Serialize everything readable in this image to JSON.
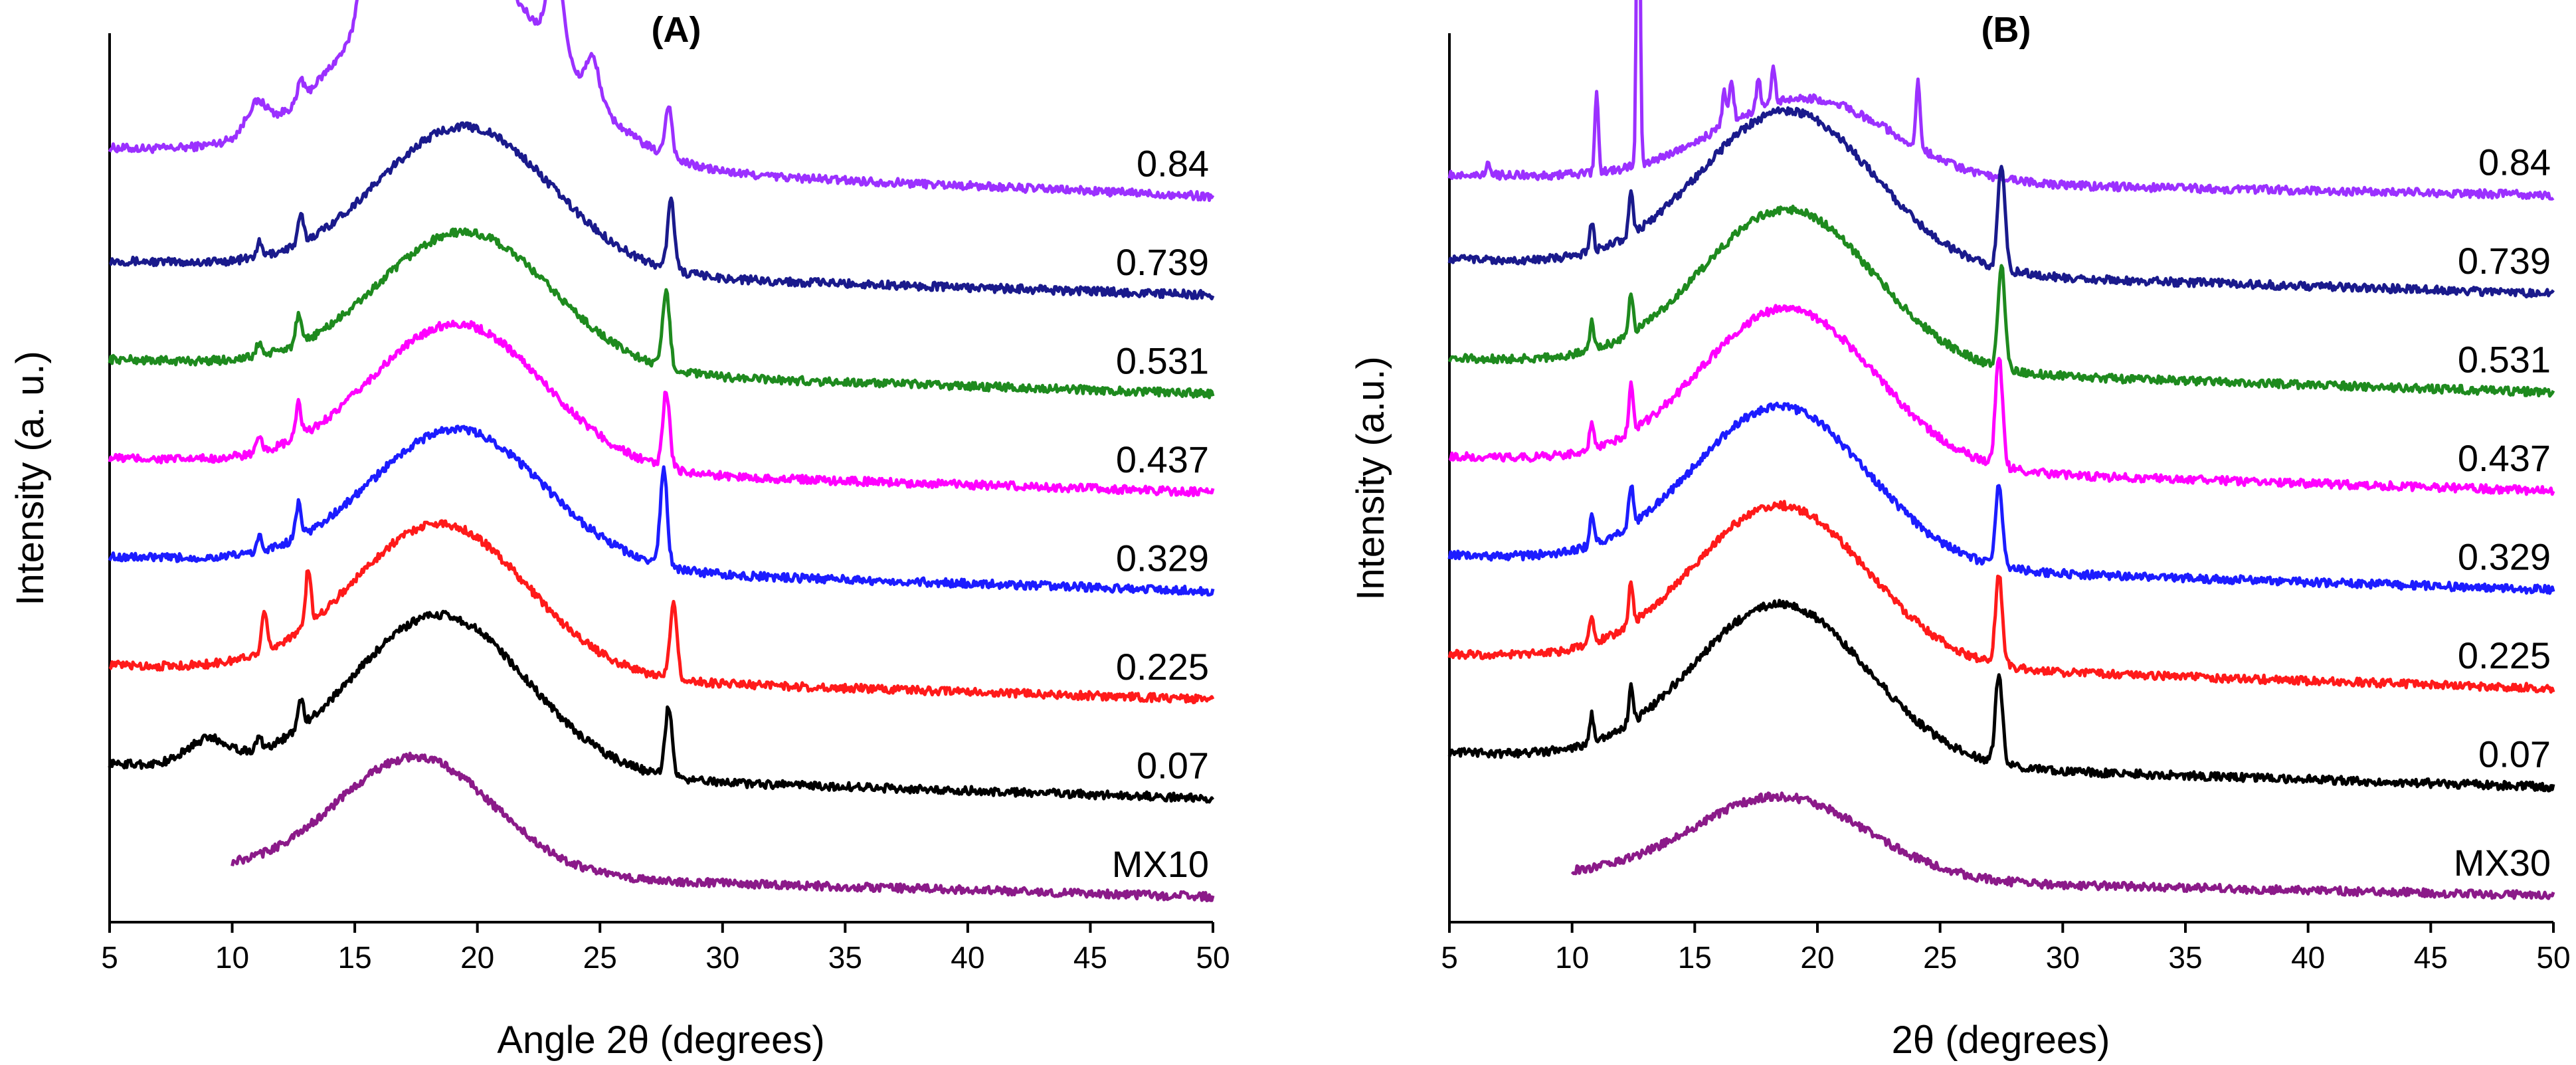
{
  "chart_data": [
    {
      "type": "line",
      "panel": "(A)",
      "title": "(A)",
      "xlabel": "Angle 2θ (degrees)",
      "ylabel": "Intensity (a. u.)",
      "xlim": [
        5,
        50
      ],
      "xticks": [
        5,
        10,
        15,
        20,
        25,
        30,
        35,
        40,
        45,
        50
      ],
      "grid": false,
      "series": [
        {
          "name": "0.84",
          "color": "#9B30FF",
          "offset": 7.1,
          "x_start": 5,
          "features": {
            "hump": [
              3.0,
              19,
              5.5
            ],
            "sharp_peaks": [
              [
                15.6,
                1.9,
                0.45
              ],
              [
                17.4,
                2.3,
                0.5
              ],
              [
                18.4,
                2.5,
                0.55
              ],
              [
                23.2,
                1.3,
                0.45
              ],
              [
                24.7,
                0.6,
                0.4
              ],
              [
                27.8,
                0.75,
                0.2
              ],
              [
                11.0,
                0.4,
                0.6
              ],
              [
                12.8,
                0.3,
                0.15
              ]
            ],
            "tail_start": 0.7,
            "tail_end": 0.0
          }
        },
        {
          "name": "0.739",
          "color": "#1A1A8C",
          "offset": 6.1,
          "x_start": 5,
          "features": {
            "hump": [
              2.1,
              19.5,
              5.0
            ],
            "sharp_peaks": [
              [
                27.9,
                1.0,
                0.2
              ],
              [
                12.8,
                0.4,
                0.15
              ],
              [
                11.1,
                0.2,
                0.15
              ]
            ],
            "tail_start": 0.5,
            "tail_end": 0.0
          }
        },
        {
          "name": "0.531",
          "color": "#1E8A1E",
          "offset": 5.1,
          "x_start": 5,
          "features": {
            "hump": [
              2.0,
              19.5,
              5.0
            ],
            "sharp_peaks": [
              [
                27.7,
                1.1,
                0.2
              ],
              [
                12.7,
                0.4,
                0.15
              ],
              [
                11.1,
                0.2,
                0.15
              ]
            ],
            "tail_start": 0.5,
            "tail_end": 0.0
          }
        },
        {
          "name": "0.437",
          "color": "#FF00FF",
          "offset": 4.1,
          "x_start": 5,
          "features": {
            "hump": [
              2.1,
              19.2,
              5.0
            ],
            "sharp_peaks": [
              [
                27.7,
                1.1,
                0.2
              ],
              [
                12.7,
                0.5,
                0.15
              ],
              [
                11.1,
                0.2,
                0.15
              ]
            ],
            "tail_start": 0.5,
            "tail_end": 0.0
          }
        },
        {
          "name": "0.329",
          "color": "#1C1CFF",
          "offset": 3.1,
          "x_start": 5,
          "features": {
            "hump": [
              2.0,
              19.2,
              5.0
            ],
            "sharp_peaks": [
              [
                27.6,
                1.4,
                0.2
              ],
              [
                12.7,
                0.5,
                0.15
              ],
              [
                11.1,
                0.2,
                0.15
              ]
            ],
            "tail_start": 0.5,
            "tail_end": 0.0
          }
        },
        {
          "name": "0.225",
          "color": "#FF1A1A",
          "offset": 2.0,
          "x_start": 5,
          "features": {
            "hump": [
              2.2,
              18.5,
              5.0
            ],
            "sharp_peaks": [
              [
                28.0,
                1.1,
                0.2
              ],
              [
                13.1,
                0.8,
                0.15
              ],
              [
                11.3,
                0.6,
                0.15
              ]
            ],
            "tail_start": 0.5,
            "tail_end": 0.0
          }
        },
        {
          "name": "0.07",
          "color": "#000000",
          "offset": 1.0,
          "x_start": 5,
          "features": {
            "hump": [
              2.3,
              18.5,
              5.0
            ],
            "sharp_peaks": [
              [
                27.8,
                1.0,
                0.2
              ],
              [
                12.8,
                0.4,
                0.15
              ],
              [
                11.1,
                0.2,
                0.15
              ],
              [
                9.0,
                0.35,
                1.2
              ]
            ],
            "tail_start": 0.5,
            "tail_end": 0.0
          }
        },
        {
          "name": "MX10",
          "color": "#8B1A89",
          "offset": 0.0,
          "x_start": 10,
          "features": {
            "hump": [
              1.7,
              17.5,
              4.5
            ],
            "sharp_peaks": [],
            "tail_start": 0.4,
            "tail_end": 0.0
          }
        }
      ]
    },
    {
      "type": "line",
      "panel": "(B)",
      "title": "(B)",
      "xlabel": "2θ (degrees)",
      "ylabel": "Intensity (a.u.)",
      "xlim": [
        5,
        50
      ],
      "xticks": [
        5,
        10,
        15,
        20,
        25,
        30,
        35,
        40,
        45,
        50
      ],
      "grid": false,
      "series": [
        {
          "name": "0.84",
          "color": "#9B30FF",
          "offset": 7.1,
          "x_start": 5,
          "features": {
            "hump": [
              1.2,
              19.5,
              5.0
            ],
            "sharp_peaks": [
              [
                12.7,
                6.5,
                0.09
              ],
              [
                11.0,
                1.2,
                0.1
              ],
              [
                24.1,
                1.0,
                0.12
              ],
              [
                16.2,
                0.5,
                0.12
              ],
              [
                16.5,
                0.6,
                0.12
              ],
              [
                17.6,
                0.4,
                0.12
              ],
              [
                18.2,
                0.5,
                0.12
              ],
              [
                6.6,
                0.2,
                0.1
              ]
            ],
            "tail_start": 0.3,
            "tail_end": 0.0
          }
        },
        {
          "name": "0.739",
          "color": "#1A1A8C",
          "offset": 6.1,
          "x_start": 5,
          "features": {
            "hump": [
              2.3,
              18.8,
              5.0
            ],
            "sharp_peaks": [
              [
                27.5,
                1.5,
                0.2
              ],
              [
                12.4,
                0.6,
                0.12
              ],
              [
                10.8,
                0.4,
                0.12
              ]
            ],
            "tail_start": 0.5,
            "tail_end": 0.0
          }
        },
        {
          "name": "0.531",
          "color": "#1E8A1E",
          "offset": 5.1,
          "x_start": 5,
          "features": {
            "hump": [
              2.3,
              18.8,
              5.0
            ],
            "sharp_peaks": [
              [
                27.5,
                1.5,
                0.2
              ],
              [
                12.4,
                0.6,
                0.12
              ],
              [
                10.8,
                0.4,
                0.12
              ]
            ],
            "tail_start": 0.5,
            "tail_end": 0.0
          }
        },
        {
          "name": "0.437",
          "color": "#FF00FF",
          "offset": 4.1,
          "x_start": 5,
          "features": {
            "hump": [
              2.3,
              18.8,
              5.0
            ],
            "sharp_peaks": [
              [
                27.4,
                1.6,
                0.2
              ],
              [
                12.4,
                0.7,
                0.12
              ],
              [
                10.8,
                0.4,
                0.12
              ]
            ],
            "tail_start": 0.5,
            "tail_end": 0.0
          }
        },
        {
          "name": "0.329",
          "color": "#1C1CFF",
          "offset": 3.1,
          "x_start": 5,
          "features": {
            "hump": [
              2.3,
              18.5,
              5.0
            ],
            "sharp_peaks": [
              [
                27.4,
                1.2,
                0.2
              ],
              [
                12.4,
                0.6,
                0.12
              ],
              [
                10.8,
                0.4,
                0.12
              ]
            ],
            "tail_start": 0.5,
            "tail_end": 0.0
          }
        },
        {
          "name": "0.225",
          "color": "#FF1A1A",
          "offset": 2.1,
          "x_start": 5,
          "features": {
            "hump": [
              2.3,
              18.5,
              5.0
            ],
            "sharp_peaks": [
              [
                27.4,
                1.3,
                0.2
              ],
              [
                12.4,
                0.6,
                0.12
              ],
              [
                10.8,
                0.4,
                0.12
              ]
            ],
            "tail_start": 0.5,
            "tail_end": 0.0
          }
        },
        {
          "name": "0.07",
          "color": "#000000",
          "offset": 1.1,
          "x_start": 5,
          "features": {
            "hump": [
              2.3,
              18.5,
              5.0
            ],
            "sharp_peaks": [
              [
                27.4,
                1.3,
                0.2
              ],
              [
                12.4,
                0.5,
                0.12
              ],
              [
                10.8,
                0.4,
                0.12
              ]
            ],
            "tail_start": 0.5,
            "tail_end": 0.0
          }
        },
        {
          "name": "MX30",
          "color": "#8B1A89",
          "offset": 0.0,
          "x_start": 10,
          "features": {
            "hump": [
              1.2,
              18.5,
              5.0
            ],
            "sharp_peaks": [],
            "tail_start": 0.3,
            "tail_end": 0.0
          }
        }
      ]
    }
  ]
}
